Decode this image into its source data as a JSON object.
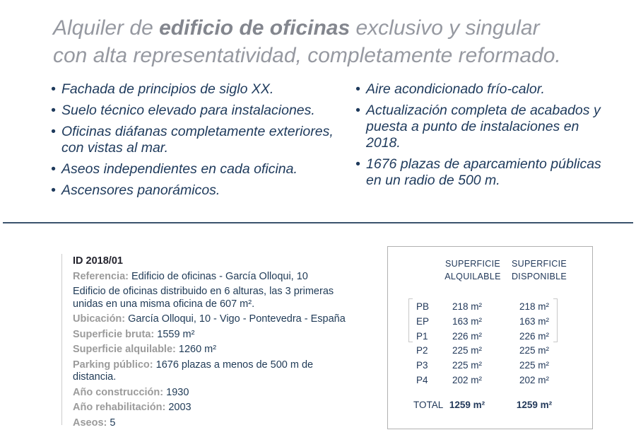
{
  "title": {
    "line1_prefix": "Alquiler de ",
    "line1_bold": "edificio de oficinas",
    "line1_suffix": " exclusivo y singular",
    "line2": "con alta representatividad, completamente reformado."
  },
  "features": {
    "left": [
      "Fachada de principios de siglo XX.",
      "Suelo técnico elevado para instalaciones.",
      "Oficinas diáfanas completamente exteriores, con vistas al mar.",
      "Aseos independientes en cada oficina.",
      "Ascensores panorámicos."
    ],
    "right": [
      "Aire acondicionado frío-calor.",
      "Actualización completa de acabados y puesta a punto de instalaciones en 2018.",
      "1676 plazas de aparcamiento públicas en un radio de 500 m."
    ]
  },
  "details": {
    "id": "ID 2018/01",
    "rows": [
      {
        "label": "Referencia:",
        "value": "Edificio de oficinas - García Olloqui, 10"
      },
      {
        "label": "",
        "value": "Edificio de oficinas distribuido en 6 alturas, las 3 primeras unidas en una misma oficina de 607 m²."
      },
      {
        "label": "Ubicación:",
        "value": "García Olloqui, 10 - Vigo - Pontevedra - España"
      },
      {
        "label": "Superficie bruta:",
        "value": "1559 m²"
      },
      {
        "label": "Superficie alquilable:",
        "value": "1260 m²"
      },
      {
        "label": "Parking público:",
        "value": "1676 plazas a menos de 500 m de distancia."
      },
      {
        "label": "Año construcción:",
        "value": "1930"
      },
      {
        "label": "Año rehabilitación:",
        "value": "2003"
      },
      {
        "label": "Aseos:",
        "value": "5"
      }
    ]
  },
  "table": {
    "header1_line1": "SUPERFICIE",
    "header1_line2": "ALQUILABLE",
    "header2_line1": "SUPERFICIE",
    "header2_line2": "DISPONIBLE",
    "rows": [
      {
        "floor": "PB",
        "alquilable": "218 m²",
        "disponible": "218 m²"
      },
      {
        "floor": "EP",
        "alquilable": "163 m²",
        "disponible": "163 m²"
      },
      {
        "floor": "P1",
        "alquilable": "226 m²",
        "disponible": "226 m²"
      },
      {
        "floor": "P2",
        "alquilable": "225 m²",
        "disponible": "225 m²"
      },
      {
        "floor": "P3",
        "alquilable": "225 m²",
        "disponible": "225 m²"
      },
      {
        "floor": "P4",
        "alquilable": "202 m²",
        "disponible": "202 m²"
      }
    ],
    "total": {
      "label": "TOTAL",
      "alquilable": "1259 m²",
      "disponible": "1259 m²"
    }
  },
  "colors": {
    "title_gray": "#9699a1",
    "title_bold_gray": "#83868e",
    "navy": "#1e3a5c",
    "label_gray": "#9b9b9b",
    "divider_navy": "#3b536d",
    "table_border_gray": "#b1b1b1",
    "bracket_gray": "#c8c8c8"
  }
}
